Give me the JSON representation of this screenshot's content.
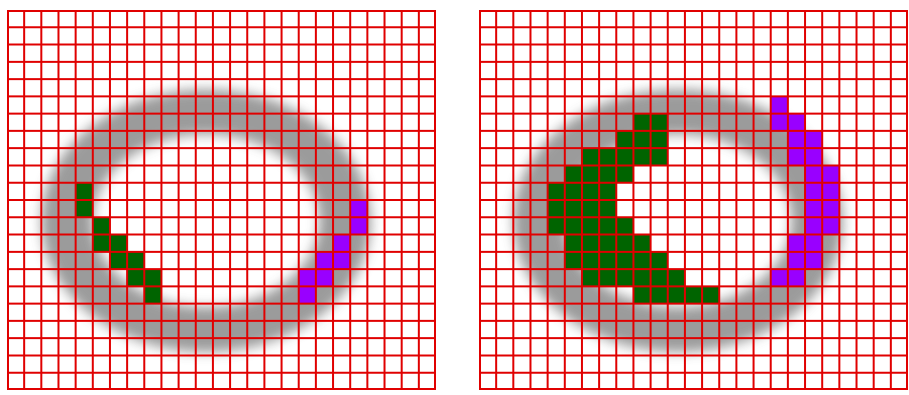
{
  "colors": {
    "background": "#ffffff",
    "grid_line": "#e00000",
    "ring": "#8a8a8a",
    "region_a": "#006400",
    "region_b": "#9900ff"
  },
  "panels": [
    {
      "name": "left-panel",
      "grid_cols": 25,
      "grid_rows": 22,
      "ring": {
        "cx": 11.6,
        "cy": 12.2,
        "rx": 9.6,
        "ry": 7.6,
        "inner_rx": 6.6,
        "inner_ry": 5.0
      },
      "cells_a": [
        [
          4,
          10
        ],
        [
          4,
          11
        ],
        [
          5,
          12
        ],
        [
          5,
          13
        ],
        [
          6,
          13
        ],
        [
          6,
          14
        ],
        [
          7,
          14
        ],
        [
          7,
          15
        ],
        [
          8,
          15
        ],
        [
          8,
          16
        ]
      ],
      "cells_b": [
        [
          20,
          11
        ],
        [
          20,
          12
        ],
        [
          19,
          13
        ],
        [
          19,
          14
        ],
        [
          18,
          14
        ],
        [
          18,
          15
        ],
        [
          17,
          15
        ],
        [
          17,
          16
        ]
      ]
    },
    {
      "name": "right-panel",
      "grid_cols": 25,
      "grid_rows": 22,
      "ring": {
        "cx": 11.6,
        "cy": 12.2,
        "rx": 9.6,
        "ry": 7.6,
        "inner_rx": 6.6,
        "inner_ry": 5.0
      },
      "cells_a": [
        [
          9,
          6
        ],
        [
          10,
          6
        ],
        [
          8,
          7
        ],
        [
          9,
          7
        ],
        [
          10,
          7
        ],
        [
          6,
          8
        ],
        [
          7,
          8
        ],
        [
          8,
          8
        ],
        [
          9,
          8
        ],
        [
          10,
          8
        ],
        [
          5,
          9
        ],
        [
          6,
          9
        ],
        [
          7,
          9
        ],
        [
          8,
          9
        ],
        [
          4,
          10
        ],
        [
          5,
          10
        ],
        [
          6,
          10
        ],
        [
          7,
          10
        ],
        [
          4,
          11
        ],
        [
          5,
          11
        ],
        [
          6,
          11
        ],
        [
          7,
          11
        ],
        [
          4,
          12
        ],
        [
          5,
          12
        ],
        [
          6,
          12
        ],
        [
          7,
          12
        ],
        [
          8,
          12
        ],
        [
          5,
          13
        ],
        [
          6,
          13
        ],
        [
          7,
          13
        ],
        [
          8,
          13
        ],
        [
          9,
          13
        ],
        [
          5,
          14
        ],
        [
          6,
          14
        ],
        [
          7,
          14
        ],
        [
          8,
          14
        ],
        [
          9,
          14
        ],
        [
          10,
          14
        ],
        [
          6,
          15
        ],
        [
          7,
          15
        ],
        [
          8,
          15
        ],
        [
          9,
          15
        ],
        [
          10,
          15
        ],
        [
          11,
          15
        ],
        [
          9,
          16
        ],
        [
          10,
          16
        ],
        [
          11,
          16
        ],
        [
          12,
          16
        ],
        [
          13,
          16
        ]
      ],
      "cells_b": [
        [
          17,
          5
        ],
        [
          17,
          6
        ],
        [
          18,
          6
        ],
        [
          18,
          7
        ],
        [
          19,
          7
        ],
        [
          18,
          8
        ],
        [
          19,
          8
        ],
        [
          19,
          9
        ],
        [
          20,
          9
        ],
        [
          19,
          10
        ],
        [
          20,
          10
        ],
        [
          19,
          11
        ],
        [
          20,
          11
        ],
        [
          19,
          12
        ],
        [
          20,
          12
        ],
        [
          18,
          13
        ],
        [
          19,
          13
        ],
        [
          18,
          14
        ],
        [
          19,
          14
        ],
        [
          17,
          15
        ],
        [
          18,
          15
        ]
      ]
    }
  ]
}
